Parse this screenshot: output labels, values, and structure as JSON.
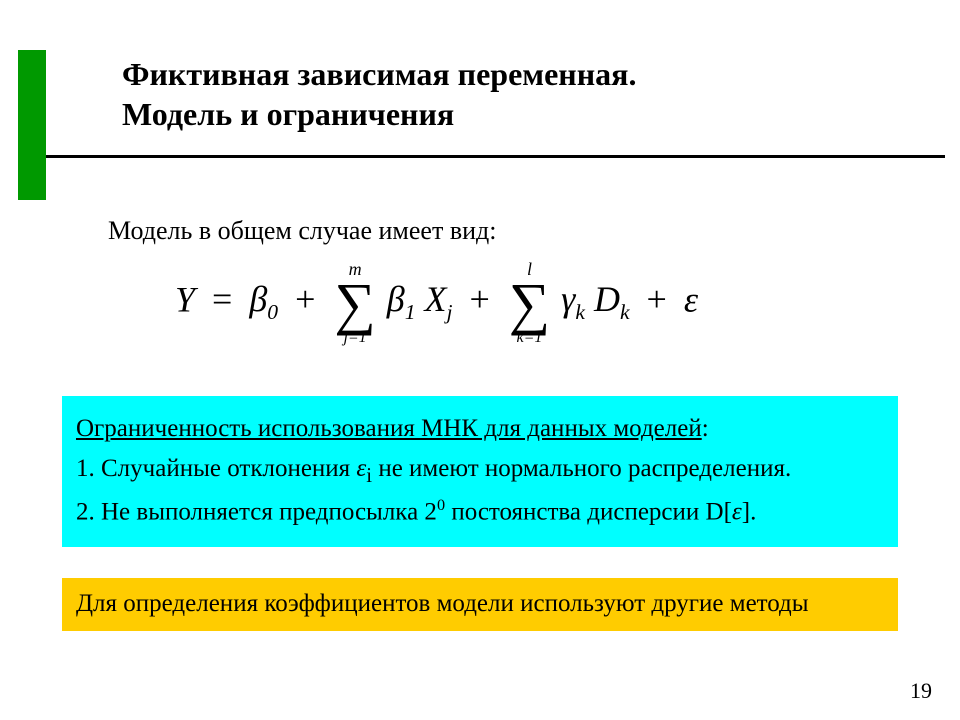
{
  "title_line1": "Фиктивная зависимая переменная.",
  "title_line2": "Модель и ограничения",
  "intro": "Модель в общем случае имеет вид:",
  "formula": {
    "lhs": "Y",
    "eq": "=",
    "beta0_sym": "β",
    "beta0_sub": "0",
    "plus": "+",
    "sum1_top": "m",
    "sum1_sym": "∑",
    "sum1_bot": "j=1",
    "beta1_sym": "β",
    "beta1_sub": "1",
    "X": "X",
    "X_sub": "j",
    "sum2_top": "l",
    "sum2_sym": "∑",
    "sum2_bot": "k=1",
    "gamma": "γ",
    "gamma_sub": "k",
    "D": "D",
    "D_sub": "k",
    "eps": "ε"
  },
  "cyan": {
    "heading": "Ограниченность использования МНК для данных моделей",
    "colon": ":",
    "p1_a": "1. Случайные отклонения ",
    "p1_eps": "ε",
    "p1_sub": "i",
    "p1_b": " не имеют нормального распределения.",
    "p2_a": "2. Не выполняется предпосылка 2",
    "p2_sup": "0",
    "p2_b": " постоянства дисперсии D[",
    "p2_eps": "ε",
    "p2_c": "]."
  },
  "yellow": "Для определения коэффициентов модели используют другие методы",
  "page": "19",
  "colors": {
    "green": "#009900",
    "cyan": "#00ffff",
    "yellow": "#ffcc00",
    "black": "#000000",
    "white": "#ffffff"
  }
}
